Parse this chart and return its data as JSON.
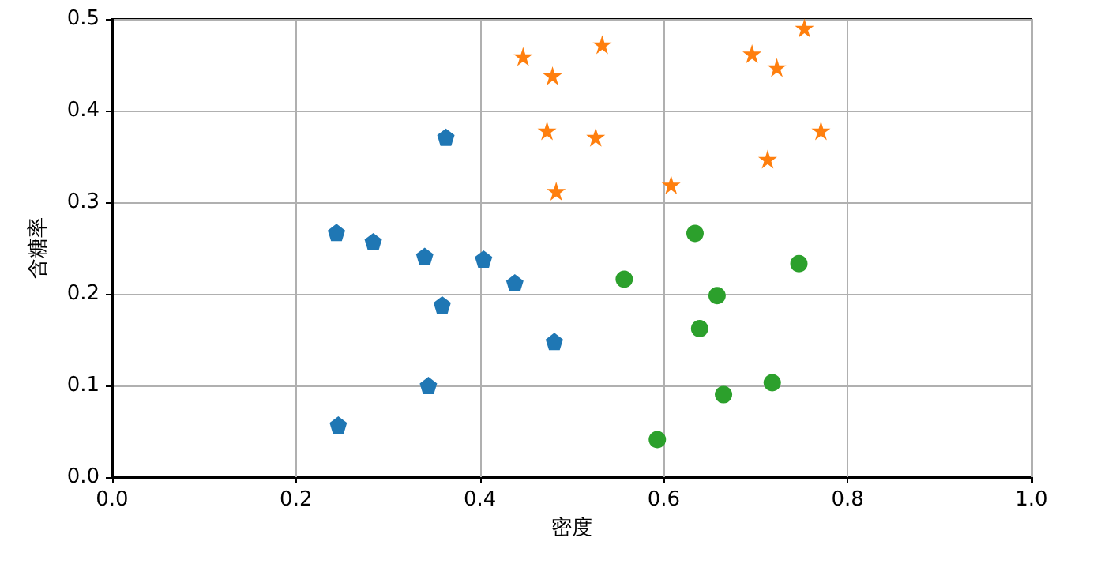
{
  "chart_data": {
    "type": "scatter",
    "xlabel": "密度",
    "ylabel": "含糖率",
    "xlim": [
      0,
      1
    ],
    "ylim": [
      0,
      0.5
    ],
    "xticks": [
      {
        "value": 0,
        "label": "0.0"
      },
      {
        "value": 0.2,
        "label": "0.2"
      },
      {
        "value": 0.4,
        "label": "0.4"
      },
      {
        "value": 0.6,
        "label": "0.6"
      },
      {
        "value": 0.8,
        "label": "0.8"
      },
      {
        "value": 1,
        "label": "1.0"
      }
    ],
    "yticks": [
      {
        "value": 0,
        "label": "0.0"
      },
      {
        "value": 0.1,
        "label": "0.1"
      },
      {
        "value": 0.2,
        "label": "0.2"
      },
      {
        "value": 0.3,
        "label": "0.3"
      },
      {
        "value": 0.4,
        "label": "0.4"
      },
      {
        "value": 0.5,
        "label": "0.5"
      }
    ],
    "grid": true,
    "series": [
      {
        "color": "#1f77b4",
        "x": [
          0.244,
          0.284,
          0.34,
          0.404,
          0.438,
          0.359,
          0.481,
          0.344,
          0.246,
          0.363
        ],
        "values": [
          0.267,
          0.257,
          0.241,
          0.238,
          0.212,
          0.188,
          0.148,
          0.1,
          0.057,
          0.371
        ]
      },
      {
        "color": "#ff7f0e",
        "marker": "star",
        "x": [
          0.447,
          0.479,
          0.533,
          0.473,
          0.526,
          0.483,
          0.608,
          0.696,
          0.723,
          0.753,
          0.771,
          0.713
        ],
        "values": [
          0.459,
          0.438,
          0.472,
          0.378,
          0.371,
          0.312,
          0.319,
          0.462,
          0.447,
          0.49,
          0.378,
          0.347
        ]
      },
      {
        "color": "#2ca02c",
        "marker": "circle",
        "x": [
          0.557,
          0.634,
          0.658,
          0.639,
          0.747,
          0.665,
          0.718,
          0.593
        ],
        "values": [
          0.216,
          0.266,
          0.198,
          0.162,
          0.233,
          0.09,
          0.103,
          0.041
        ]
      }
    ]
  }
}
